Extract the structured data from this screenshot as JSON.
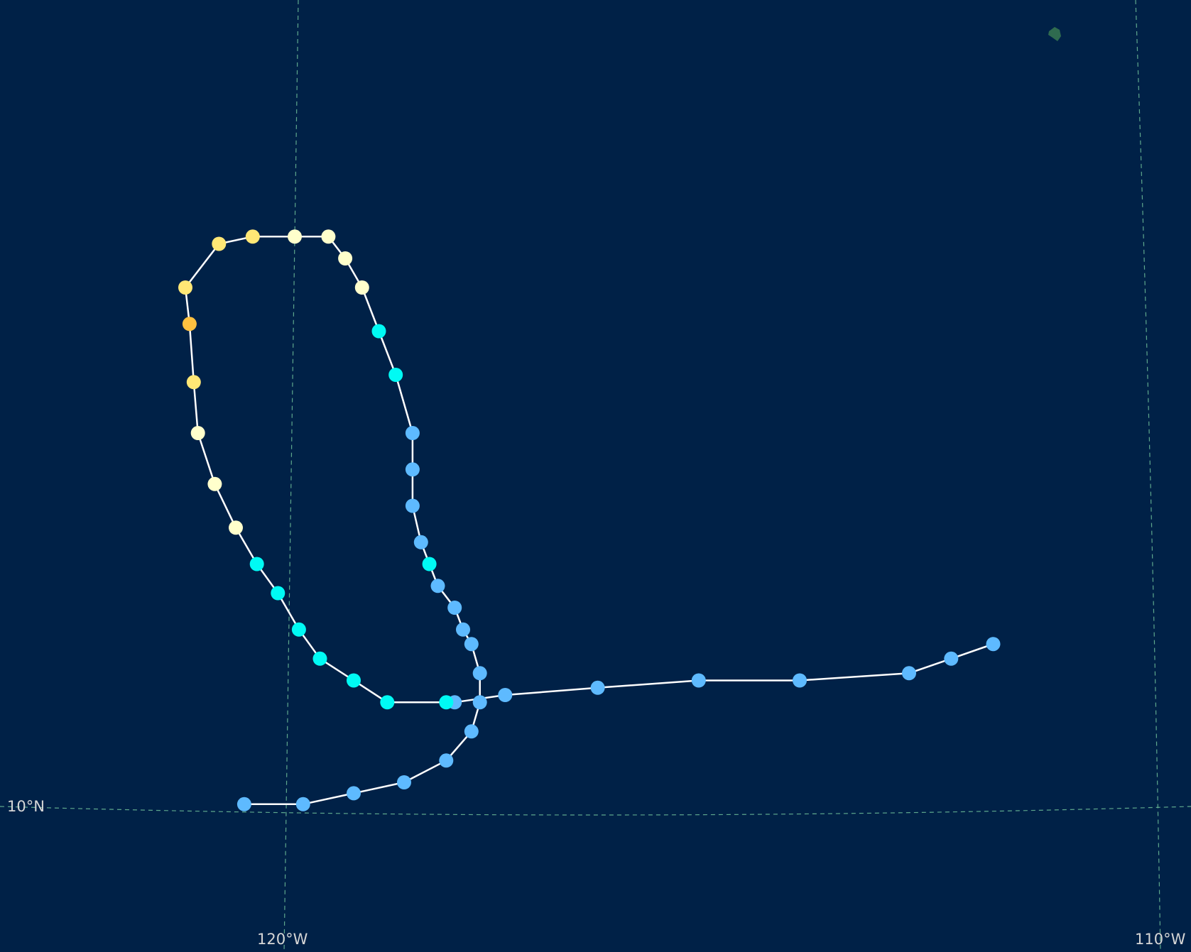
{
  "map": {
    "background_color": "#002147",
    "grid_color": "#6fbf9a",
    "track_line_color": "#ffffff",
    "labels": {
      "lat_10": "10°N",
      "lon_120": "120°W",
      "lon_110": "110°W"
    },
    "category_colors": {
      "td": "#5ebaff",
      "ts": "#00faf4",
      "cat1": "#ffffcc",
      "cat2": "#ffe775",
      "cat3": "#ffc140"
    }
  },
  "track": [
    {
      "lon": -111.7,
      "lat": 12.3,
      "category": "td"
    },
    {
      "lon": -112.2,
      "lat": 12.1,
      "category": "td"
    },
    {
      "lon": -112.7,
      "lat": 11.9,
      "category": "td"
    },
    {
      "lon": -114.0,
      "lat": 11.8,
      "category": "td"
    },
    {
      "lon": -115.2,
      "lat": 11.8,
      "category": "td"
    },
    {
      "lon": -116.4,
      "lat": 11.7,
      "category": "td"
    },
    {
      "lon": -117.5,
      "lat": 11.6,
      "category": "td"
    },
    {
      "lon": -118.1,
      "lat": 11.5,
      "category": "td"
    },
    {
      "lon": -118.2,
      "lat": 11.5,
      "category": "ts"
    },
    {
      "lon": -118.9,
      "lat": 11.5,
      "category": "ts"
    },
    {
      "lon": -119.3,
      "lat": 11.8,
      "category": "ts"
    },
    {
      "lon": -119.7,
      "lat": 12.1,
      "category": "ts"
    },
    {
      "lon": -119.95,
      "lat": 12.5,
      "category": "ts"
    },
    {
      "lon": -120.2,
      "lat": 13.0,
      "category": "ts"
    },
    {
      "lon": -120.45,
      "lat": 13.4,
      "category": "ts"
    },
    {
      "lon": -120.7,
      "lat": 13.9,
      "category": "cat1"
    },
    {
      "lon": -120.95,
      "lat": 14.5,
      "category": "cat1"
    },
    {
      "lon": -121.15,
      "lat": 15.2,
      "category": "cat1"
    },
    {
      "lon": -121.2,
      "lat": 15.9,
      "category": "cat2"
    },
    {
      "lon": -121.25,
      "lat": 16.7,
      "category": "cat3"
    },
    {
      "lon": -121.3,
      "lat": 17.2,
      "category": "cat2"
    },
    {
      "lon": -120.9,
      "lat": 17.8,
      "category": "cat2"
    },
    {
      "lon": -120.5,
      "lat": 17.9,
      "category": "cat2"
    },
    {
      "lon": -120.0,
      "lat": 17.9,
      "category": "cat1"
    },
    {
      "lon": -119.6,
      "lat": 17.9,
      "category": "cat1"
    },
    {
      "lon": -119.4,
      "lat": 17.6,
      "category": "cat1"
    },
    {
      "lon": -119.2,
      "lat": 17.2,
      "category": "cat1"
    },
    {
      "lon": -119.0,
      "lat": 16.6,
      "category": "ts"
    },
    {
      "lon": -118.8,
      "lat": 16.0,
      "category": "ts"
    },
    {
      "lon": -118.6,
      "lat": 15.2,
      "category": "td"
    },
    {
      "lon": -118.6,
      "lat": 14.7,
      "category": "td"
    },
    {
      "lon": -118.6,
      "lat": 14.2,
      "category": "td"
    },
    {
      "lon": -118.5,
      "lat": 13.7,
      "category": "td"
    },
    {
      "lon": -118.4,
      "lat": 13.4,
      "category": "ts"
    },
    {
      "lon": -118.3,
      "lat": 13.1,
      "category": "td"
    },
    {
      "lon": -118.1,
      "lat": 12.8,
      "category": "td"
    },
    {
      "lon": -118.0,
      "lat": 12.5,
      "category": "td"
    },
    {
      "lon": -117.9,
      "lat": 12.3,
      "category": "td"
    },
    {
      "lon": -117.8,
      "lat": 11.9,
      "category": "td"
    },
    {
      "lon": -117.8,
      "lat": 11.5,
      "category": "td"
    },
    {
      "lon": -117.9,
      "lat": 11.1,
      "category": "td"
    },
    {
      "lon": -118.2,
      "lat": 10.7,
      "category": "td"
    },
    {
      "lon": -118.7,
      "lat": 10.4,
      "category": "td"
    },
    {
      "lon": -119.3,
      "lat": 10.25,
      "category": "td"
    },
    {
      "lon": -119.9,
      "lat": 10.1,
      "category": "td"
    },
    {
      "lon": -120.6,
      "lat": 10.1,
      "category": "td"
    }
  ]
}
